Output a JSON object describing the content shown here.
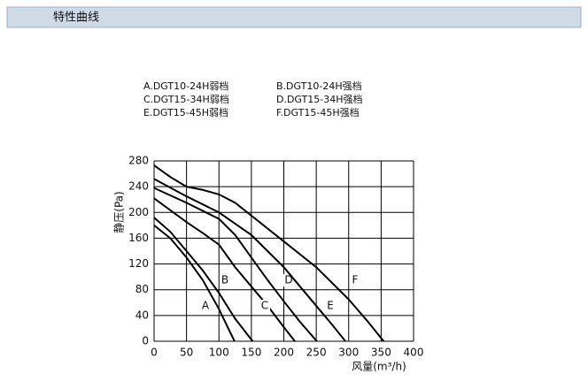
{
  "header": {
    "title": "特性曲线"
  },
  "chart_data": {
    "type": "line",
    "legend_entries": [
      "A.DGT10-24H弱档",
      "B.DGT10-24H强档",
      "C.DGT15-34H弱档",
      "D.DGT15-34H强档",
      "E.DGT15-45H弱档",
      "F.DGT15-45H强档"
    ],
    "x_label": "风量(m³/h)",
    "y_label": "静压(Pa)",
    "xlim": [
      0,
      400
    ],
    "xticks": [
      0,
      50,
      100,
      150,
      200,
      250,
      300,
      350,
      400
    ],
    "ylim": [
      0,
      280
    ],
    "yticks": [
      0,
      40,
      80,
      120,
      160,
      200,
      240,
      280
    ],
    "grid": true,
    "color": "#000000",
    "series": [
      {
        "name": "A",
        "x": [
          0,
          25,
          50,
          75,
          100,
          124
        ],
        "values": [
          180,
          160,
          130,
          95,
          50,
          0
        ]
      },
      {
        "name": "B",
        "x": [
          0,
          25,
          50,
          75,
          100,
          125,
          152
        ],
        "values": [
          192,
          170,
          140,
          110,
          75,
          35,
          0
        ]
      },
      {
        "name": "C",
        "x": [
          0,
          50,
          75,
          100,
          125,
          150,
          175,
          200,
          217
        ],
        "values": [
          222,
          185,
          168,
          150,
          115,
          85,
          55,
          22,
          0
        ]
      },
      {
        "name": "D",
        "x": [
          0,
          50,
          100,
          125,
          150,
          175,
          200,
          225,
          251
        ],
        "values": [
          238,
          215,
          190,
          165,
          130,
          95,
          62,
          30,
          0
        ]
      },
      {
        "name": "E",
        "x": [
          0,
          50,
          100,
          150,
          175,
          200,
          225,
          250,
          275,
          295
        ],
        "values": [
          252,
          225,
          200,
          165,
          140,
          115,
          85,
          55,
          25,
          0
        ]
      },
      {
        "name": "F",
        "x": [
          0,
          25,
          50,
          75,
          100,
          125,
          150,
          200,
          250,
          300,
          330,
          354
        ],
        "values": [
          273,
          255,
          240,
          235,
          228,
          215,
          195,
          155,
          115,
          65,
          30,
          0
        ]
      }
    ]
  }
}
